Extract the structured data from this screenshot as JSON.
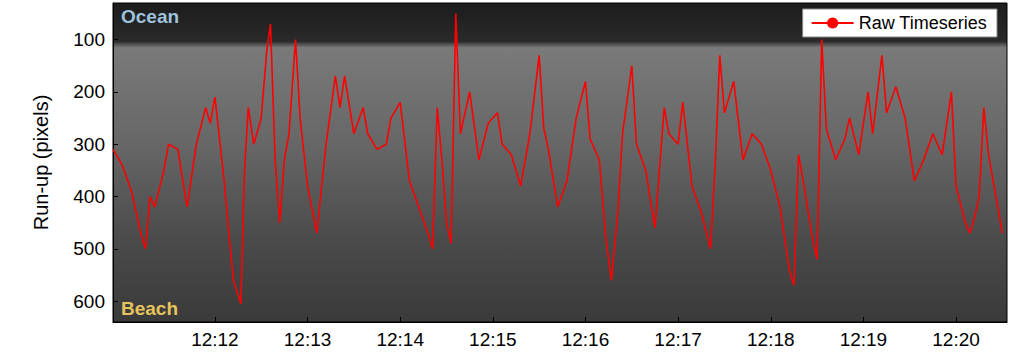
{
  "chart_data": {
    "type": "line",
    "y_label": "Run-up (pixels)",
    "annotations": [
      {
        "text": "Ocean",
        "color": "#9ec3df"
      },
      {
        "text": "Beach",
        "color": "#e6c35c"
      }
    ],
    "x": [
      10.9,
      11.0,
      11.1,
      11.2,
      11.25,
      11.3,
      11.35,
      11.45,
      11.5,
      11.6,
      11.7,
      11.8,
      11.9,
      11.95,
      12.0,
      12.1,
      12.15,
      12.2,
      12.28,
      12.32,
      12.36,
      12.42,
      12.5,
      12.56,
      12.6,
      12.65,
      12.7,
      12.75,
      12.8,
      12.87,
      12.92,
      13.0,
      13.1,
      13.2,
      13.3,
      13.35,
      13.4,
      13.5,
      13.6,
      13.65,
      13.75,
      13.85,
      13.9,
      14.0,
      14.1,
      14.2,
      14.3,
      14.35,
      14.4,
      14.45,
      14.5,
      14.55,
      14.6,
      14.65,
      14.75,
      14.85,
      14.95,
      15.05,
      15.1,
      15.2,
      15.3,
      15.4,
      15.5,
      15.55,
      15.6,
      15.7,
      15.8,
      15.9,
      16.0,
      16.05,
      16.15,
      16.22,
      16.28,
      16.35,
      16.4,
      16.5,
      16.55,
      16.65,
      16.75,
      16.85,
      16.9,
      17.0,
      17.05,
      17.15,
      17.25,
      17.35,
      17.4,
      17.45,
      17.5,
      17.6,
      17.7,
      17.8,
      17.9,
      18.0,
      18.1,
      18.2,
      18.25,
      18.3,
      18.35,
      18.45,
      18.5,
      18.55,
      18.6,
      18.7,
      18.8,
      18.85,
      18.95,
      19.05,
      19.1,
      19.2,
      19.25,
      19.35,
      19.45,
      19.55,
      19.65,
      19.75,
      19.85,
      19.95,
      20.0,
      20.1,
      20.15,
      20.2,
      20.25,
      20.3,
      20.35,
      20.45,
      20.5
    ],
    "series": [
      {
        "name": "Raw Timeseries",
        "color": "#ff0000",
        "line_style": "solid",
        "values": [
          310,
          340,
          390,
          470,
          500,
          400,
          420,
          350,
          300,
          310,
          420,
          300,
          230,
          260,
          210,
          370,
          470,
          560,
          605,
          350,
          230,
          300,
          250,
          120,
          70,
          330,
          450,
          330,
          280,
          100,
          250,
          380,
          470,
          300,
          170,
          230,
          170,
          280,
          230,
          280,
          310,
          300,
          250,
          220,
          370,
          420,
          470,
          500,
          230,
          330,
          450,
          490,
          50,
          280,
          200,
          330,
          260,
          240,
          300,
          320,
          380,
          280,
          130,
          270,
          310,
          420,
          370,
          250,
          180,
          290,
          330,
          480,
          560,
          430,
          280,
          150,
          300,
          350,
          460,
          230,
          280,
          300,
          220,
          380,
          430,
          500,
          340,
          130,
          240,
          180,
          330,
          280,
          300,
          350,
          420,
          540,
          570,
          320,
          370,
          480,
          520,
          100,
          270,
          330,
          290,
          250,
          320,
          200,
          280,
          130,
          240,
          190,
          250,
          370,
          330,
          280,
          320,
          200,
          380,
          450,
          470,
          440,
          400,
          230,
          320,
          420,
          470
        ]
      }
    ],
    "xlim": [
      10.9,
      20.55
    ],
    "xticks": [
      {
        "value": 12,
        "label": "12:12"
      },
      {
        "value": 13,
        "label": "12:13"
      },
      {
        "value": 14,
        "label": "12:14"
      },
      {
        "value": 15,
        "label": "12:15"
      },
      {
        "value": 16,
        "label": "12:16"
      },
      {
        "value": 17,
        "label": "12:17"
      },
      {
        "value": 18,
        "label": "12:18"
      },
      {
        "value": 19,
        "label": "12:19"
      },
      {
        "value": 20,
        "label": "12:20"
      }
    ],
    "ylim": [
      30,
      640
    ],
    "yticks": [
      100,
      200,
      300,
      400,
      500,
      600
    ],
    "grid": false,
    "legend": "upper right"
  }
}
